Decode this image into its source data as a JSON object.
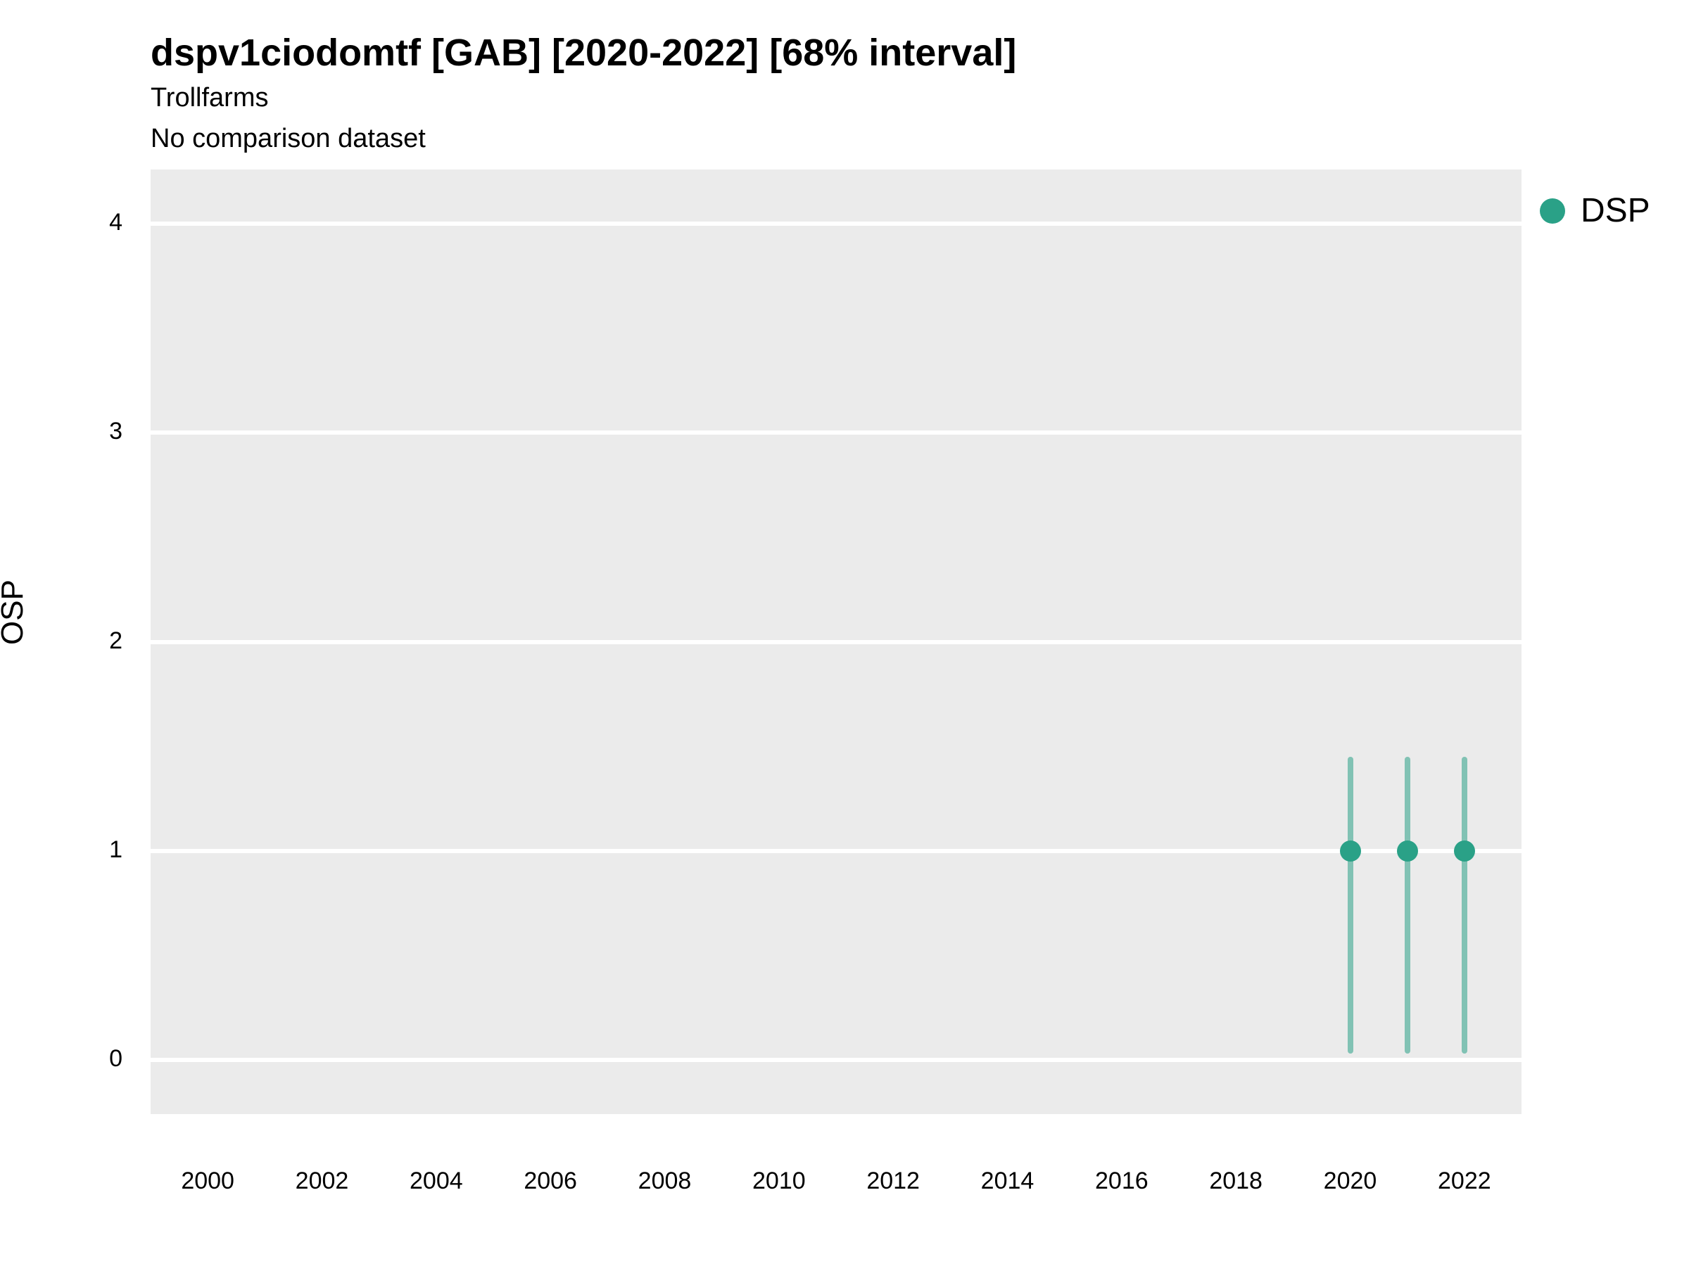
{
  "chart_data": {
    "type": "scatter",
    "title": "dspv1ciodomtf [GAB] [2020-2022] [68% interval]",
    "subtitle": "Trollfarms",
    "note": "No comparison dataset",
    "xlabel": "",
    "ylabel": "OSP",
    "x_ticks": [
      2000,
      2002,
      2004,
      2006,
      2008,
      2010,
      2012,
      2014,
      2016,
      2018,
      2020,
      2022
    ],
    "y_ticks": [
      0,
      1,
      2,
      3,
      4
    ],
    "x_range": [
      1999,
      2023
    ],
    "y_range": [
      -0.26,
      4.26
    ],
    "grid": "horizontal-major-only",
    "panel_bg": "#ebebeb",
    "grid_color": "#ffffff",
    "legend_position": "right-top",
    "legend": [
      {
        "label": "DSP",
        "color": "#2aa187"
      }
    ],
    "series": [
      {
        "name": "DSP",
        "color": "#2aa187",
        "interval_opacity": 0.55,
        "points": [
          {
            "x": 2020,
            "y": 1.0,
            "low": 0.03,
            "high": 1.45
          },
          {
            "x": 2021,
            "y": 1.0,
            "low": 0.03,
            "high": 1.45
          },
          {
            "x": 2022,
            "y": 1.0,
            "low": 0.03,
            "high": 1.45
          }
        ]
      }
    ]
  }
}
